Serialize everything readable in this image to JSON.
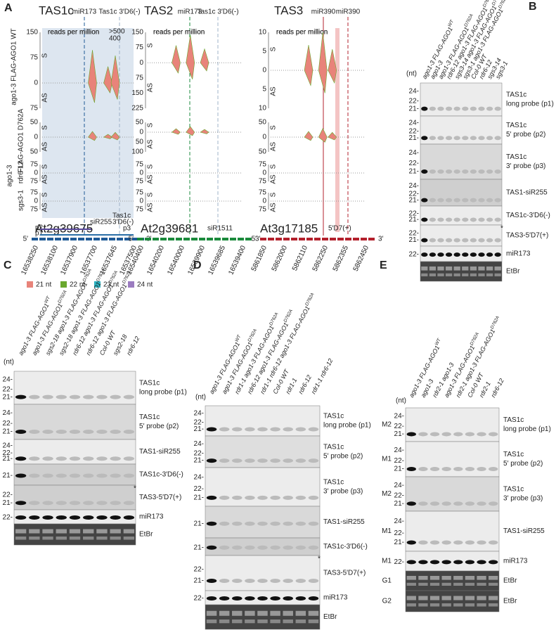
{
  "panel_a": {
    "letter": "A",
    "row_labels": [
      "ago1-3  FLAG-AGO1 WT",
      "ago1-3",
      "FLAG-AGO1 D762A",
      "rdr6-12",
      "sgs3-1"
    ],
    "strand": [
      "S",
      "AS"
    ],
    "units": "reads per million",
    "ends": [
      "5′",
      "3′"
    ],
    "loci": [
      {
        "title": "TAS1c",
        "color": "#1f5a96",
        "mirna": [
          "miR173"
        ],
        "site": "Tas1c 3′D6(-)",
        "scales": [
          [
            "150",
            "75",
            "0",
            "75"
          ],
          [
            "50",
            "0",
            "50"
          ],
          [
            "75",
            "0",
            "75"
          ],
          [
            "75",
            "0",
            "75"
          ]
        ],
        "inset": [
          ">500",
          "400"
        ],
        "gene": "At2g39675",
        "features": [
          "p2",
          "p1",
          "siR255",
          "Tas1c",
          "3′D6(-)",
          "p3"
        ],
        "coords": [
          "16538250",
          "16538100",
          "16537900",
          "16537700",
          "16537645",
          "16537500"
        ]
      },
      {
        "title": "TAS2",
        "color": "#1b8a3c",
        "mirna": [
          "miR173"
        ],
        "site": "Tas1c 3′D6(-)",
        "scales": [
          [
            "150",
            "75",
            "0",
            "75",
            "150",
            "225"
          ],
          [
            "50",
            "0",
            "50",
            "100"
          ],
          [
            "75",
            "0",
            "75"
          ],
          [
            "75",
            "0",
            "75"
          ]
        ],
        "gene": "At2g39681",
        "features": [
          "siR1511"
        ],
        "coords": [
          "16540400",
          "16540200",
          "16540000",
          "16539900",
          "16539685",
          "16539400"
        ]
      },
      {
        "title": "TAS3",
        "color": "#b3202c",
        "mirna": [
          "miR390",
          "miR390"
        ],
        "scales": [
          [
            "10",
            "5",
            "0",
            "5",
            "10"
          ],
          [
            "50",
            "0",
            "50"
          ],
          [
            "75",
            "0",
            "75"
          ],
          [
            "75",
            "0",
            "75"
          ]
        ],
        "gene": "At3g17185",
        "features": [
          "5′D7(+)"
        ],
        "coords": [
          "5861850",
          "5862000",
          "5862110",
          "5862250",
          "5862355",
          "5862450"
        ]
      }
    ],
    "legend": [
      {
        "name": "21 nt",
        "color": "#e8837a"
      },
      {
        "name": "22 nt",
        "color": "#6aa82e"
      },
      {
        "name": "23 nt",
        "color": "#2ab0bf"
      },
      {
        "name": "24 nt",
        "color": "#9b7cc0"
      }
    ]
  },
  "panel_b": {
    "letter": "B",
    "nt": "(nt)",
    "lanes": [
      {
        "name": "ago1-3 FLAG-AGO1",
        "sup": "WT"
      },
      {
        "name": "ago1-3"
      },
      {
        "name": "ago1-3 FLAG-AGO1",
        "sup": "D762A"
      },
      {
        "name": "rdr6-12 ago1-3 FLAG-AGO1",
        "sup": "D762A"
      },
      {
        "name": "sgs3-14 ago1-3 FLAG-AGO1",
        "sup": "D762A"
      },
      {
        "name": "sgs3-1 ago1-3 FLAG-AGO1",
        "sup": "D762A"
      },
      {
        "name": "Col-0 WT"
      },
      {
        "name": "rdr6-12"
      },
      {
        "name": "sgs3-14"
      },
      {
        "name": "sgs3-1"
      }
    ],
    "rows": [
      {
        "markers": [
          "24-",
          "22-",
          "21-"
        ],
        "label": [
          "TAS1c",
          "long probe (p1)"
        ],
        "color": "#2a6ea6"
      },
      {
        "markers": [
          "24-",
          "22-",
          "21-"
        ],
        "label": [
          "TAS1c",
          "5′ probe (p2)"
        ],
        "color": "#5b4a9b"
      },
      {
        "markers": [
          "24-",
          "22-",
          "21-"
        ],
        "label": [
          "TAS1c",
          "3′ probe (p3)"
        ],
        "color": "#1a9a88"
      },
      {
        "markers": [
          "24-",
          "22-",
          "21-"
        ],
        "label": [
          "TAS1-siR255"
        ],
        "color": "#1e7fb0"
      },
      {
        "markers": [
          "22-",
          "21-"
        ],
        "label": [
          "TAS1c-3′D6(-)"
        ],
        "color": "#3a4f9b"
      },
      {
        "markers": [
          "22-",
          "21-"
        ],
        "label": [
          "TAS3-5′D7(+)"
        ],
        "color": "#c0202c",
        "star": "*"
      },
      {
        "markers": [
          "22-"
        ],
        "label": [
          "miR173"
        ],
        "color": "#222"
      },
      {
        "markers": [],
        "label": [
          "EtBr"
        ],
        "color": "#222"
      }
    ]
  },
  "panel_c": {
    "letter": "C",
    "nt": "(nt)",
    "lanes": [
      {
        "name": "ago1-3 FLAG-AGO1",
        "sup": "WT"
      },
      {
        "name": "ago1-3 FLAG-AGO1",
        "sup": "D762A"
      },
      {
        "name": "sgs2-18 ago1-3 FLAG-AGO1",
        "sup": "D762A"
      },
      {
        "name": "sgs2-18 ago1-3 FLAG-AGO1",
        "sup": "D762A"
      },
      {
        "name": "rdr6-12 ago1-3 FLAG-AGO1",
        "sup": "D762A"
      },
      {
        "name": "rdr6-12 ago1-3 FLAG-AGO1",
        "sup": "D762A"
      },
      {
        "name": "Col-0 WT"
      },
      {
        "name": "sgs2-18"
      },
      {
        "name": "rdr6-12"
      }
    ],
    "rows": [
      {
        "markers": [
          "24-",
          "22-",
          "21-"
        ],
        "label": [
          "TAS1c",
          "long probe (p1)"
        ],
        "color": "#2a6ea6"
      },
      {
        "markers": [
          "24-",
          "22-",
          "21-"
        ],
        "label": [
          "TAS1c",
          "5′ probe (p2)"
        ],
        "color": "#5b4a9b"
      },
      {
        "markers": [
          "24-",
          "22-",
          "21-"
        ],
        "label": [
          "TAS1-siR255"
        ],
        "color": "#1e7fb0"
      },
      {
        "markers": [
          "21-"
        ],
        "label": [
          "TAS1c-3′D6(-)"
        ],
        "color": "#3a4f9b"
      },
      {
        "markers": [
          "22-",
          "21-"
        ],
        "label": [
          "TAS3-5′D7(+)"
        ],
        "color": "#c0202c",
        "star": "*"
      },
      {
        "markers": [
          "22-"
        ],
        "label": [
          "miR173"
        ],
        "color": "#222"
      },
      {
        "markers": [],
        "label": [
          "EtBr"
        ],
        "color": "#222"
      }
    ]
  },
  "panel_d": {
    "letter": "D",
    "nt": "(nt)",
    "lanes": [
      {
        "name": "ago1-3 FLAG-AGO1",
        "sup": "WT"
      },
      {
        "name": "ago1-3 FLAG-AGO1",
        "sup": "D762A"
      },
      {
        "name": "rdr1-1 ago1-3 FLAG-AGO1",
        "sup": "D762A"
      },
      {
        "name": "rdr6-12 ago1-3 FLAG-AGO1",
        "sup": "D762A"
      },
      {
        "name": "rdr1-1 rdr6-12 ago1-3 FLAG-AGO1",
        "sup": "D762A"
      },
      {
        "name": "Col-0 WT"
      },
      {
        "name": "rdr1-1"
      },
      {
        "name": "rdr6-12"
      },
      {
        "name": "rdr1-1 rdr6-12"
      }
    ],
    "rows": [
      {
        "markers": [
          "24-",
          "22-",
          "21-"
        ],
        "label": [
          "TAS1c",
          "long probe (p1)"
        ],
        "color": "#2a6ea6"
      },
      {
        "markers": [
          "24-",
          "22-",
          "21-"
        ],
        "label": [
          "TAS1c",
          "5′ probe (p2)"
        ],
        "color": "#5b4a9b"
      },
      {
        "markers": [
          "24-",
          "22-",
          "21-"
        ],
        "label": [
          "TAS1c",
          "3′ probe (p3)"
        ],
        "color": "#1a9a88"
      },
      {
        "markers": [
          "21-"
        ],
        "label": [
          "TAS1-siR255"
        ],
        "color": "#1e7fb0"
      },
      {
        "markers": [
          "21-"
        ],
        "label": [
          "TAS1c-3′D6(-)"
        ],
        "color": "#3a4f9b"
      },
      {
        "markers": [
          "22-",
          "21-"
        ],
        "label": [
          "TAS3-5′D7(+)"
        ],
        "color": "#c0202c",
        "star": "*"
      },
      {
        "markers": [
          "22-"
        ],
        "label": [
          "miR173"
        ],
        "color": "#222"
      },
      {
        "markers": [],
        "label": [
          "EtBr"
        ],
        "color": "#222"
      }
    ]
  },
  "panel_e": {
    "letter": "E",
    "nt": "(nt)",
    "lanes": [
      {
        "name": "ago1-3 FLAG-AGO1",
        "sup": "WT"
      },
      {
        "name": "ago1-3"
      },
      {
        "name": "rdr2-1 ago1-3"
      },
      {
        "name": "ago1-3 FLAG-AGO1",
        "sup": "D762A"
      },
      {
        "name": "rdr2-1 ago1-3 FLAG-AGO1",
        "sup": "D762A"
      },
      {
        "name": "Col-0 WT"
      },
      {
        "name": "rdr2-1"
      },
      {
        "name": "rdr6-12"
      }
    ],
    "rows": [
      {
        "membrane": "M2",
        "markers": [
          "24-",
          "22-",
          "21-"
        ],
        "label": [
          "TAS1c",
          "long probe (p1)"
        ],
        "color": "#2a6ea6"
      },
      {
        "membrane": "M1",
        "markers": [
          "24-",
          "22-",
          "21-"
        ],
        "label": [
          "TAS1c",
          "5′ probe (p2)"
        ],
        "color": "#5b4a9b"
      },
      {
        "membrane": "M2",
        "markers": [
          "24-",
          "22-",
          "21-"
        ],
        "label": [
          "TAS1c",
          "3′ probe (p3)"
        ],
        "color": "#1a9a88"
      },
      {
        "membrane": "M1",
        "markers": [
          "24-",
          "22-",
          "21-"
        ],
        "label": [
          "TAS1-siR255"
        ],
        "color": "#1e7fb0"
      },
      {
        "membrane": "M1",
        "markers": [
          "22-"
        ],
        "label": [
          "miR173"
        ],
        "color": "#222"
      },
      {
        "membrane": "G1",
        "markers": [],
        "label": [
          "EtBr"
        ],
        "color": "#222"
      },
      {
        "membrane": "G2",
        "markers": [],
        "label": [
          "EtBr"
        ],
        "color": "#222"
      }
    ]
  }
}
